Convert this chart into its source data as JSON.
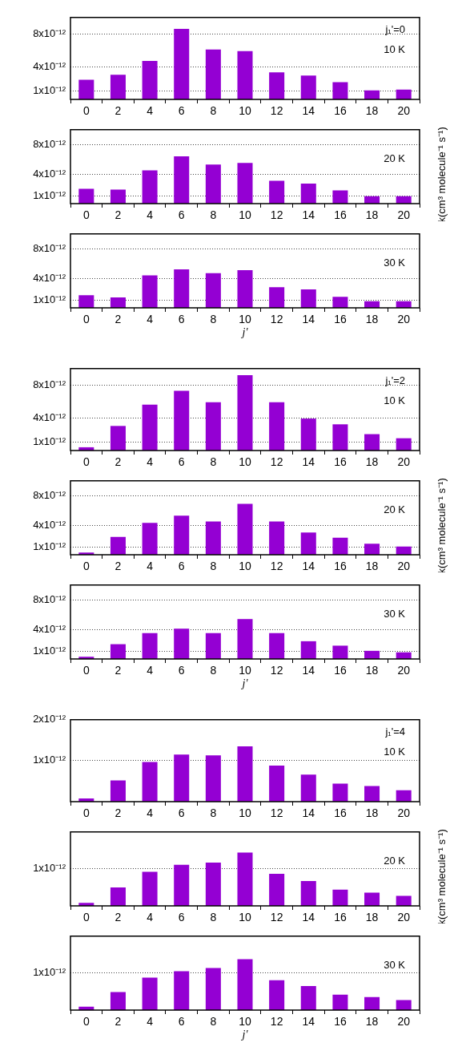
{
  "chart_data": [
    {
      "type": "bar",
      "categories": [
        "0",
        "2",
        "4",
        "6",
        "8",
        "10",
        "12",
        "14",
        "16",
        "18",
        "20"
      ],
      "values": [
        2.4e-12,
        3e-12,
        4.7e-12,
        8.6e-12,
        6.1e-12,
        5.9e-12,
        3.3e-12,
        2.9e-12,
        2.1e-12,
        1.1e-12,
        1.2e-12
      ],
      "color": "#9400d3",
      "ylim": [
        0,
        1e-11
      ],
      "yticks": [
        {
          "value": 1e-12,
          "label": "1x10⁻¹²"
        },
        {
          "value": 4e-12,
          "label": "4x10⁻¹²"
        },
        {
          "value": 8e-12,
          "label": "8x10⁻¹²"
        }
      ],
      "grid": "y",
      "annotations": [
        "j₁'=0",
        "10 K"
      ]
    },
    {
      "type": "bar",
      "categories": [
        "0",
        "2",
        "4",
        "6",
        "8",
        "10",
        "12",
        "14",
        "16",
        "18",
        "20"
      ],
      "values": [
        2e-12,
        1.9e-12,
        4.5e-12,
        6.4e-12,
        5.3e-12,
        5.5e-12,
        3.1e-12,
        2.7e-12,
        1.8e-12,
        1e-12,
        1e-12
      ],
      "color": "#9400d3",
      "ylim": [
        0,
        1e-11
      ],
      "yticks": [
        {
          "value": 1e-12,
          "label": "1x10⁻¹²"
        },
        {
          "value": 4e-12,
          "label": "4x10⁻¹²"
        },
        {
          "value": 8e-12,
          "label": "8x10⁻¹²"
        }
      ],
      "grid": "y",
      "ylabel": "k(cm³ molecule⁻¹ s⁻¹)",
      "annotations": [
        "20 K"
      ]
    },
    {
      "type": "bar",
      "categories": [
        "0",
        "2",
        "4",
        "6",
        "8",
        "10",
        "12",
        "14",
        "16",
        "18",
        "20"
      ],
      "values": [
        1.7e-12,
        1.4e-12,
        4.4e-12,
        5.2e-12,
        4.7e-12,
        5.1e-12,
        2.8e-12,
        2.5e-12,
        1.5e-12,
        9e-13,
        9e-13
      ],
      "color": "#9400d3",
      "ylim": [
        0,
        1e-11
      ],
      "yticks": [
        {
          "value": 1e-12,
          "label": "1x10⁻¹²"
        },
        {
          "value": 4e-12,
          "label": "4x10⁻¹²"
        },
        {
          "value": 8e-12,
          "label": "8x10⁻¹²"
        }
      ],
      "grid": "y",
      "xlabel": "j'",
      "annotations": [
        "30 K"
      ]
    },
    {
      "type": "bar",
      "categories": [
        "0",
        "2",
        "4",
        "6",
        "8",
        "10",
        "12",
        "14",
        "16",
        "18",
        "20"
      ],
      "values": [
        4e-13,
        3e-12,
        5.6e-12,
        7.3e-12,
        5.9e-12,
        9.2e-12,
        5.9e-12,
        3.9e-12,
        3.2e-12,
        2e-12,
        1.5e-12
      ],
      "color": "#9400d3",
      "ylim": [
        0,
        1e-11
      ],
      "yticks": [
        {
          "value": 1e-12,
          "label": "1x10⁻¹²"
        },
        {
          "value": 4e-12,
          "label": "4x10⁻¹²"
        },
        {
          "value": 8e-12,
          "label": "8x10⁻¹²"
        }
      ],
      "grid": "y",
      "annotations": [
        "j₁'=2",
        "10 K"
      ]
    },
    {
      "type": "bar",
      "categories": [
        "0",
        "2",
        "4",
        "6",
        "8",
        "10",
        "12",
        "14",
        "16",
        "18",
        "20"
      ],
      "values": [
        3e-13,
        2.4e-12,
        4.3e-12,
        5.3e-12,
        4.5e-12,
        6.9e-12,
        4.5e-12,
        3e-12,
        2.3e-12,
        1.5e-12,
        1.1e-12
      ],
      "color": "#9400d3",
      "ylim": [
        0,
        1e-11
      ],
      "yticks": [
        {
          "value": 1e-12,
          "label": "1x10⁻¹²"
        },
        {
          "value": 4e-12,
          "label": "4x10⁻¹²"
        },
        {
          "value": 8e-12,
          "label": "8x10⁻¹²"
        }
      ],
      "grid": "y",
      "ylabel": "k(cm³ molecule⁻¹ s⁻¹)",
      "annotations": [
        "20 K"
      ]
    },
    {
      "type": "bar",
      "categories": [
        "0",
        "2",
        "4",
        "6",
        "8",
        "10",
        "12",
        "14",
        "16",
        "18",
        "20"
      ],
      "values": [
        3e-13,
        2e-12,
        3.5e-12,
        4.1e-12,
        3.5e-12,
        5.4e-12,
        3.5e-12,
        2.4e-12,
        1.8e-12,
        1.1e-12,
        9e-13
      ],
      "color": "#9400d3",
      "ylim": [
        0,
        1e-11
      ],
      "yticks": [
        {
          "value": 1e-12,
          "label": "1x10⁻¹²"
        },
        {
          "value": 4e-12,
          "label": "4x10⁻¹²"
        },
        {
          "value": 8e-12,
          "label": "8x10⁻¹²"
        }
      ],
      "grid": "y",
      "xlabel": "j'",
      "annotations": [
        "30 K"
      ]
    },
    {
      "type": "bar",
      "categories": [
        "0",
        "2",
        "4",
        "6",
        "8",
        "10",
        "12",
        "14",
        "16",
        "18",
        "20"
      ],
      "values": [
        8e-14,
        5.2e-13,
        9.7e-13,
        1.15e-12,
        1.13e-12,
        1.35e-12,
        8.8e-13,
        6.6e-13,
        4.4e-13,
        3.8e-13,
        2.8e-13
      ],
      "color": "#9400d3",
      "ylim": [
        0,
        2e-12
      ],
      "yticks": [
        {
          "value": 1e-12,
          "label": "1x10⁻¹²"
        },
        {
          "value": 2e-12,
          "label": "2x10⁻¹²"
        }
      ],
      "grid": "y",
      "annotations": [
        "j₁'=4",
        "10 K"
      ]
    },
    {
      "type": "bar",
      "categories": [
        "0",
        "2",
        "4",
        "6",
        "8",
        "10",
        "12",
        "14",
        "16",
        "18",
        "20"
      ],
      "values": [
        8e-14,
        5e-13,
        9.2e-13,
        1.11e-12,
        1.17e-12,
        1.44e-12,
        8.7e-13,
        6.7e-13,
        4.4e-13,
        3.6e-13,
        2.7e-13
      ],
      "color": "#9400d3",
      "ylim": [
        0,
        2e-12
      ],
      "yticks": [
        {
          "value": 1e-12,
          "label": "1x10⁻¹²"
        }
      ],
      "grid": "y",
      "ylabel": "k(cm³ molecule⁻¹ s⁻¹)",
      "annotations": [
        "20 K"
      ]
    },
    {
      "type": "bar",
      "categories": [
        "0",
        "2",
        "4",
        "6",
        "8",
        "10",
        "12",
        "14",
        "16",
        "18",
        "20"
      ],
      "values": [
        9e-14,
        4.9e-13,
        8.8e-13,
        1.05e-12,
        1.14e-12,
        1.38e-12,
        8.1e-13,
        6.5e-13,
        4.2e-13,
        3.5e-13,
        2.7e-13
      ],
      "color": "#9400d3",
      "ylim": [
        0,
        2e-12
      ],
      "yticks": [
        {
          "value": 1e-12,
          "label": "1x10⁻¹²"
        }
      ],
      "grid": "y",
      "xlabel": "j'",
      "annotations": [
        "30 K"
      ]
    }
  ]
}
